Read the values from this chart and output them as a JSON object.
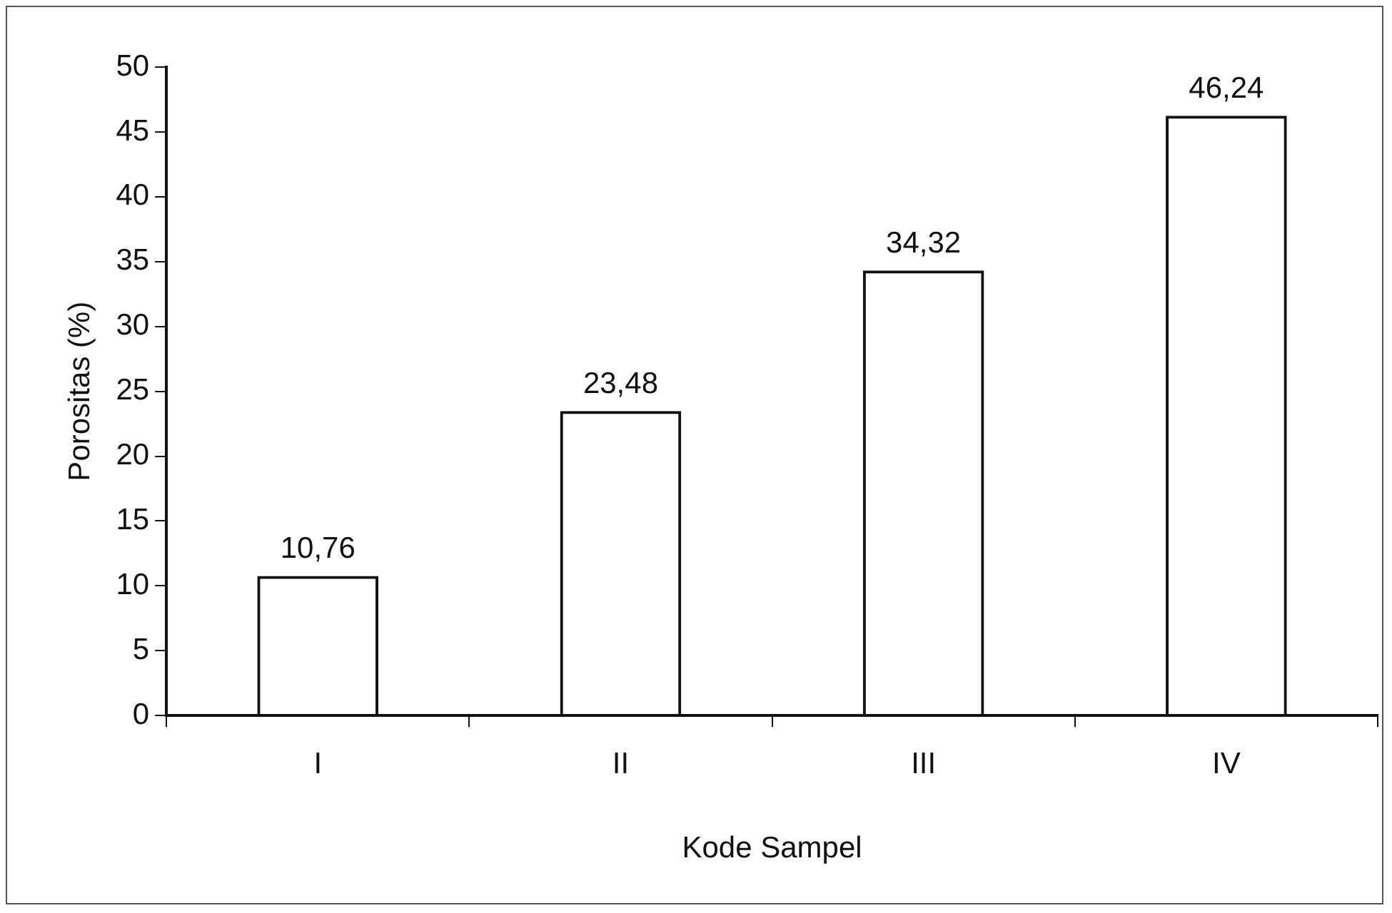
{
  "chart_data": {
    "type": "bar",
    "xlabel": "Kode Sampel",
    "ylabel": "Porositas (%)",
    "categories": [
      "I",
      "II",
      "III",
      "IV"
    ],
    "values": [
      10.76,
      23.48,
      34.32,
      46.24
    ],
    "value_labels": [
      "10,76",
      "23,48",
      "34,32",
      "46,24"
    ],
    "color": "#111111",
    "ylim": [
      0,
      50
    ],
    "yticks": [
      0,
      5,
      10,
      15,
      20,
      25,
      30,
      35,
      40,
      45,
      50
    ],
    "grid": false,
    "legend": false
  }
}
